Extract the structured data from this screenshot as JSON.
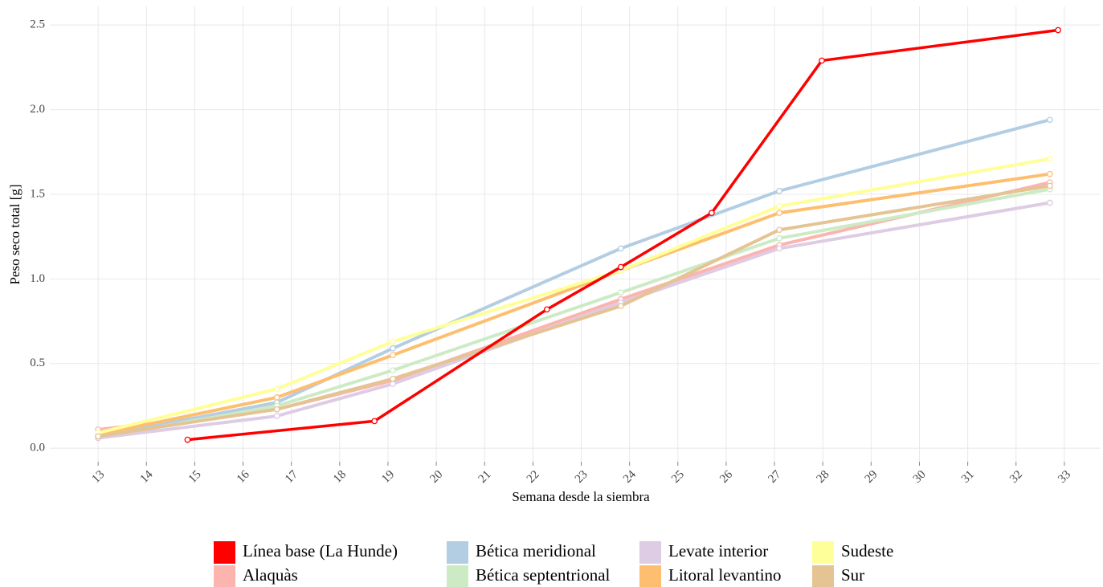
{
  "chart_data": {
    "type": "line",
    "x_label": "Semana desde la siembra",
    "y_label": "Peso seco total [g]",
    "xlim": [
      12.0,
      33.75
    ],
    "xticks": [
      13,
      14,
      15,
      16,
      17,
      18,
      19,
      20,
      21,
      22,
      23,
      24,
      25,
      26,
      27,
      28,
      29,
      30,
      31,
      32,
      33
    ],
    "ylim": [
      -0.08,
      2.61
    ],
    "yticks": [
      {
        "value": 0,
        "label": "0.0"
      },
      0.5,
      {
        "value": 1,
        "label": "1.0"
      },
      1.5,
      {
        "value": 2,
        "label": "2.0"
      },
      2.5
    ],
    "grid": true,
    "legend_position": "bottom",
    "series": [
      {
        "name": "Línea base (La Hunde)",
        "color": "#ff0000",
        "x": [
          14.85,
          18.72,
          22.29,
          23.82,
          25.7,
          27.98,
          32.87
        ],
        "values": [
          0.05,
          0.16,
          0.82,
          1.07,
          1.39,
          2.29,
          2.47
        ]
      },
      {
        "name": "Alaquàs",
        "color": "#fbb4ae",
        "x": [
          13.0,
          16.7,
          19.1,
          23.82,
          27.1,
          32.7
        ],
        "values": [
          0.11,
          0.23,
          0.4,
          0.88,
          1.2,
          1.57
        ]
      },
      {
        "name": "Bética meridional",
        "color": "#b3cde3",
        "x": [
          13.0,
          16.7,
          19.1,
          23.82,
          27.1,
          32.7
        ],
        "values": [
          0.07,
          0.27,
          0.59,
          1.18,
          1.52,
          1.94
        ]
      },
      {
        "name": "Bética septentrional",
        "color": "#ccebc5",
        "x": [
          13.0,
          16.7,
          19.1,
          23.82,
          27.1,
          32.7
        ],
        "values": [
          0.06,
          0.25,
          0.46,
          0.92,
          1.24,
          1.53
        ]
      },
      {
        "name": "Levate interior",
        "color": "#decbe4",
        "x": [
          13.0,
          16.7,
          19.1,
          23.82,
          27.1,
          32.7
        ],
        "values": [
          0.06,
          0.19,
          0.38,
          0.86,
          1.18,
          1.45
        ]
      },
      {
        "name": "Litoral levantino",
        "color": "#fdbf6f",
        "x": [
          13.0,
          16.7,
          19.1,
          23.82,
          27.1,
          32.7
        ],
        "values": [
          0.08,
          0.3,
          0.55,
          1.05,
          1.39,
          1.62
        ]
      },
      {
        "name": "Sudeste",
        "color": "#ffff99",
        "x": [
          13.0,
          16.7,
          19.1,
          23.82,
          27.1,
          32.7
        ],
        "values": [
          0.09,
          0.35,
          0.63,
          1.05,
          1.43,
          1.71
        ]
      },
      {
        "name": "Sur",
        "color": "#e5c494",
        "x": [
          13.0,
          16.7,
          19.1,
          23.82,
          27.1,
          32.7
        ],
        "values": [
          0.07,
          0.23,
          0.41,
          0.84,
          1.29,
          1.55
        ]
      }
    ]
  }
}
